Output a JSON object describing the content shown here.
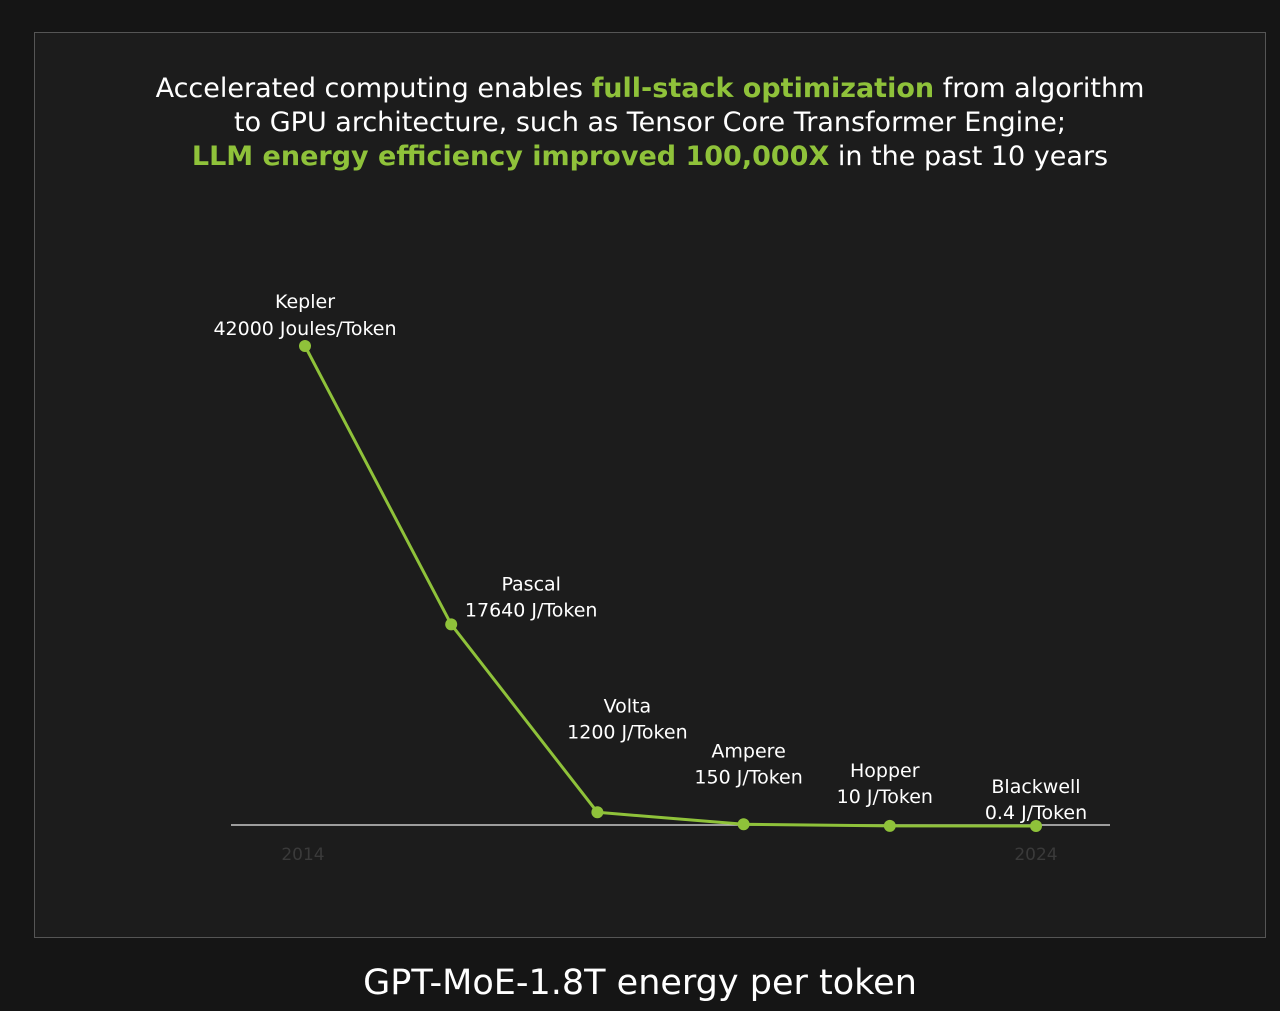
{
  "headline": {
    "line1_a": "Accelerated computing enables ",
    "line1_hl": "full-stack optimization",
    "line1_b": " from algorithm",
    "line2": "to GPU architecture, such as Tensor Core Transformer Engine;",
    "line3_hl": "LLM energy efficiency improved 100,000X",
    "line3_b": " in the past 10 years"
  },
  "colors": {
    "accent": "#8fc23a",
    "background": "#1c1c1c",
    "text": "#ffffff",
    "axis": "#c8c8c8"
  },
  "chart_data": {
    "type": "line",
    "title": "GPT-MoE-1.8T energy per token",
    "unit": "J/Token",
    "x_tick_labels": [
      "2014",
      "2024"
    ],
    "ylim": [
      0,
      42000
    ],
    "grid": false,
    "series": [
      {
        "points": [
          {
            "name": "Kepler",
            "value": 42000,
            "label": "42000 Joules/Token"
          },
          {
            "name": "Pascal",
            "value": 17640,
            "label": "17640 J/Token"
          },
          {
            "name": "Volta",
            "value": 1200,
            "label": "1200 J/Token"
          },
          {
            "name": "Ampere",
            "value": 150,
            "label": "150 J/Token"
          },
          {
            "name": "Hopper",
            "value": 10,
            "label": "10 J/Token"
          },
          {
            "name": "Blackwell",
            "value": 0.4,
            "label": "0.4 J/Token"
          }
        ]
      }
    ]
  }
}
